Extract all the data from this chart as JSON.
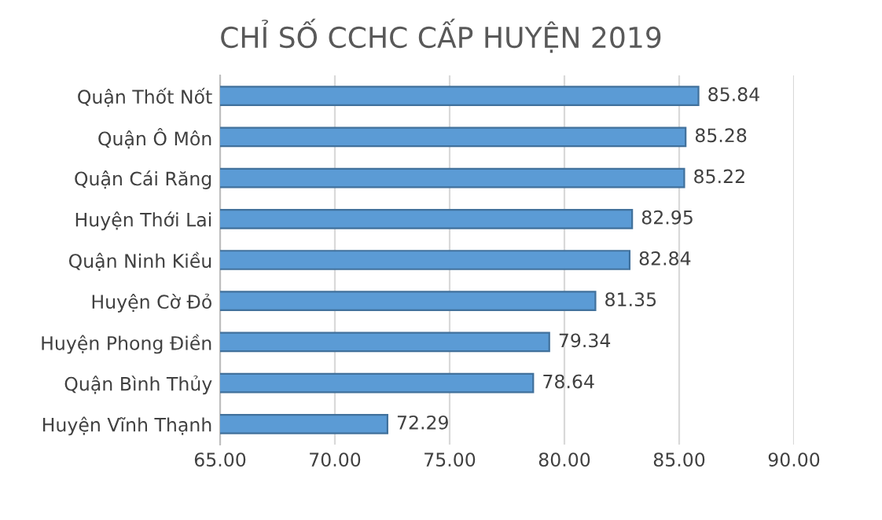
{
  "chart_data": {
    "type": "bar",
    "orientation": "horizontal",
    "title": "CHỈ SỐ CCHC CẤP HUYỆN 2019",
    "categories": [
      "Quận Thốt Nốt",
      "Quận Ô Môn",
      "Quận Cái Răng",
      "Huyện Thới Lai",
      "Quận Ninh Kiều",
      "Huyện Cờ Đỏ",
      "Huyện Phong Điền",
      "Quận Bình Thủy",
      "Huyện Vĩnh Thạnh"
    ],
    "values": [
      85.84,
      85.28,
      85.22,
      82.95,
      82.84,
      81.35,
      79.34,
      78.64,
      72.29
    ],
    "color": "#5b9bd5",
    "xlim": [
      65,
      90
    ],
    "xticks": [
      {
        "value": 65,
        "label": "65.00"
      },
      {
        "value": 70,
        "label": "70.00"
      },
      {
        "value": 75,
        "label": "75.00"
      },
      {
        "value": 80,
        "label": "80.00"
      },
      {
        "value": 85,
        "label": "85.00"
      },
      {
        "value": 90,
        "label": "90.00"
      }
    ],
    "grid": "x",
    "data_labels": true
  }
}
